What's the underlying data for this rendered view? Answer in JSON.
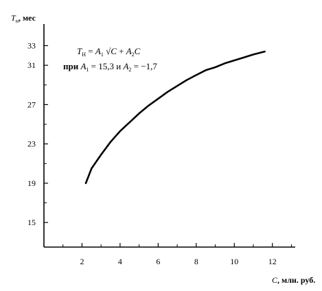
{
  "chart_data": {
    "type": "line",
    "title": "",
    "ylabel": "T_н, мес",
    "xlabel": "C, млн. руб.",
    "xlim": [
      0,
      13.2
    ],
    "ylim": [
      12.5,
      35.2
    ],
    "x_ticks": [
      2,
      4,
      6,
      8,
      10,
      12
    ],
    "y_ticks": [
      15,
      19,
      23,
      27,
      31,
      33
    ],
    "grid": false,
    "series": [
      {
        "formula": "T_н = A₁ √C + A₂ C",
        "params": {
          "A1": 15.3,
          "A2": -1.7
        },
        "x": [
          2.2,
          2.5,
          3,
          3.5,
          4,
          4.5,
          5,
          5.5,
          6,
          6.5,
          7,
          7.5,
          8,
          8.5,
          9,
          9.5,
          10,
          10.5,
          11,
          11.6
        ],
        "y": [
          19.0,
          20.5,
          21.9,
          23.2,
          24.3,
          25.2,
          26.1,
          26.9,
          27.6,
          28.3,
          28.9,
          29.5,
          30.0,
          30.5,
          30.8,
          31.2,
          31.5,
          31.8,
          32.1,
          32.4
        ]
      }
    ],
    "annotation": {
      "line1": {
        "T": "T",
        "T_sub": "Н",
        "eq": " = ",
        "A1": "A",
        "A1_sub": "1",
        "sqrt": " √C",
        "plus": " + ",
        "A2": "A",
        "A2_sub": "2",
        "C": "C"
      },
      "line2": {
        "pri": "при ",
        "A1": "A",
        "A1_sub": "1",
        "A1_val": " = 15,3  и  ",
        "A2": "A",
        "A2_sub": "2",
        "A2_val": " = −1,7"
      }
    },
    "labels": {
      "y_axis_T": "T",
      "y_axis_sub": "н",
      "y_axis_unit": ", мес",
      "x_axis_C": "C",
      "x_axis_unit": ", млн. руб."
    }
  }
}
